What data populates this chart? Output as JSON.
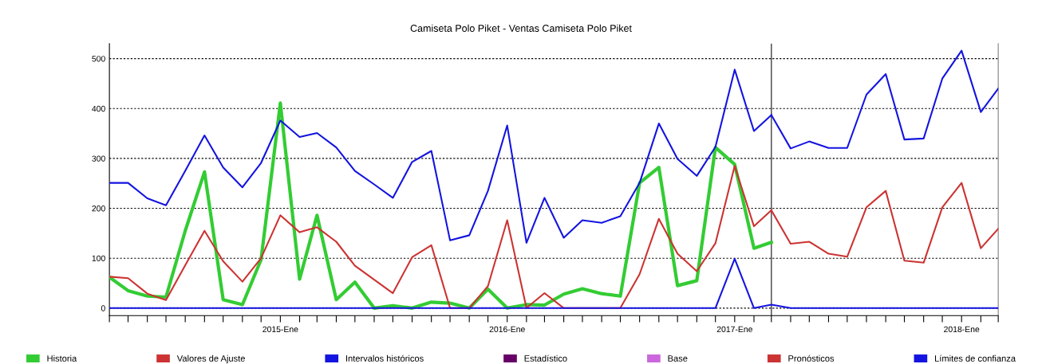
{
  "chart_data": {
    "type": "line",
    "title": "Camiseta Polo Piket - Ventas Camiseta Polo Piket",
    "xlim": [
      "2014-04",
      "2018-03"
    ],
    "xticks": [
      {
        "value": "2014-04",
        "label": null
      },
      {
        "value": "2014-05",
        "label": null
      },
      {
        "value": "2014-06",
        "label": null
      },
      {
        "value": "2014-07",
        "label": null
      },
      {
        "value": "2014-08",
        "label": null
      },
      {
        "value": "2014-09",
        "label": null
      },
      {
        "value": "2014-10",
        "label": null
      },
      {
        "value": "2014-11",
        "label": null
      },
      {
        "value": "2014-12",
        "label": null
      },
      {
        "value": "2015-01",
        "label": "2015-Ene"
      },
      {
        "value": "2015-02",
        "label": null
      },
      {
        "value": "2015-03",
        "label": null
      },
      {
        "value": "2015-04",
        "label": null
      },
      {
        "value": "2015-05",
        "label": null
      },
      {
        "value": "2015-06",
        "label": null
      },
      {
        "value": "2015-07",
        "label": null
      },
      {
        "value": "2015-08",
        "label": null
      },
      {
        "value": "2015-09",
        "label": null
      },
      {
        "value": "2015-10",
        "label": null
      },
      {
        "value": "2015-11",
        "label": null
      },
      {
        "value": "2015-12",
        "label": null
      },
      {
        "value": "2016-01",
        "label": "2016-Ene"
      },
      {
        "value": "2016-02",
        "label": null
      },
      {
        "value": "2016-03",
        "label": null
      },
      {
        "value": "2016-04",
        "label": null
      },
      {
        "value": "2016-05",
        "label": null
      },
      {
        "value": "2016-06",
        "label": null
      },
      {
        "value": "2016-07",
        "label": null
      },
      {
        "value": "2016-08",
        "label": null
      },
      {
        "value": "2016-09",
        "label": null
      },
      {
        "value": "2016-10",
        "label": null
      },
      {
        "value": "2016-11",
        "label": null
      },
      {
        "value": "2016-12",
        "label": null
      },
      {
        "value": "2017-01",
        "label": "2017-Ene"
      },
      {
        "value": "2017-02",
        "label": null
      },
      {
        "value": "2017-03",
        "label": null
      },
      {
        "value": "2017-04",
        "label": null
      },
      {
        "value": "2017-05",
        "label": null
      },
      {
        "value": "2017-06",
        "label": null
      },
      {
        "value": "2017-07",
        "label": null
      },
      {
        "value": "2017-08",
        "label": null
      },
      {
        "value": "2017-09",
        "label": null
      },
      {
        "value": "2017-10",
        "label": null
      },
      {
        "value": "2017-11",
        "label": null
      },
      {
        "value": "2017-12",
        "label": null
      },
      {
        "value": "2018-01",
        "label": "2018-Ene"
      },
      {
        "value": "2018-02",
        "label": null
      },
      {
        "value": "2018-03",
        "label": null
      }
    ],
    "ylim": [
      -15,
      530
    ],
    "yticks": [
      0,
      100,
      200,
      300,
      400,
      500
    ],
    "grid": "y",
    "legend": "bottom",
    "ref_lines": [
      {
        "axis": "x",
        "value": "2017-03",
        "color": "#404040"
      }
    ],
    "series": [
      {
        "name": "Historia",
        "color": "#33cc33",
        "x": [
          "2014-04",
          "2014-05",
          "2014-06",
          "2014-07",
          "2014-08",
          "2014-09",
          "2014-10",
          "2014-11",
          "2014-12",
          "2015-01",
          "2015-02",
          "2015-03",
          "2015-04",
          "2015-05",
          "2015-06",
          "2015-07",
          "2015-08",
          "2015-09",
          "2015-10",
          "2015-11",
          "2015-12",
          "2016-01",
          "2016-02",
          "2016-03",
          "2016-04",
          "2016-05",
          "2016-06",
          "2016-07",
          "2016-08",
          "2016-09",
          "2016-10",
          "2016-11",
          "2016-12",
          "2017-01",
          "2017-02",
          "2017-03"
        ],
        "values": [
          62,
          35,
          24,
          22,
          155,
          273,
          17,
          7,
          97,
          411,
          58,
          186,
          17,
          52,
          0,
          5,
          0,
          12,
          10,
          0,
          38,
          0,
          7,
          6,
          28,
          39,
          29,
          24,
          251,
          282,
          45,
          55,
          322,
          288,
          120,
          132
        ]
      },
      {
        "name": "Valores de Ajuste",
        "color": "#cc3333",
        "x": [
          "2014-04",
          "2014-05",
          "2014-06",
          "2014-07",
          "2014-08",
          "2014-09",
          "2014-10",
          "2014-11",
          "2014-12",
          "2015-01",
          "2015-02",
          "2015-03",
          "2015-04",
          "2015-05",
          "2015-06",
          "2015-07",
          "2015-08",
          "2015-09",
          "2015-10",
          "2015-11",
          "2015-12",
          "2016-01",
          "2016-02",
          "2016-03",
          "2016-04",
          "2016-05",
          "2016-06",
          "2016-07",
          "2016-08",
          "2016-09",
          "2016-10",
          "2016-11",
          "2016-12",
          "2017-01",
          "2017-02",
          "2017-03"
        ],
        "values": [
          63,
          60,
          29,
          16,
          86,
          155,
          94,
          53,
          100,
          186,
          152,
          162,
          133,
          85,
          57,
          30,
          102,
          126,
          0,
          0,
          44,
          176,
          0,
          30,
          0,
          0,
          0,
          0,
          68,
          179,
          109,
          74,
          130,
          285,
          164,
          196
        ]
      },
      {
        "name": "Intervalos históricos",
        "color": "#1414e0",
        "x": [
          "2014-04",
          "2014-05",
          "2014-06",
          "2014-07",
          "2014-08",
          "2014-09",
          "2014-10",
          "2014-11",
          "2014-12",
          "2015-01",
          "2015-02",
          "2015-03",
          "2015-04",
          "2015-05",
          "2015-06",
          "2015-07",
          "2015-08",
          "2015-09",
          "2015-10",
          "2015-11",
          "2015-12",
          "2016-01",
          "2016-02",
          "2016-03",
          "2016-04",
          "2016-05",
          "2016-06",
          "2016-07",
          "2016-08",
          "2016-09",
          "2016-10",
          "2016-11",
          "2016-12",
          "2017-01",
          "2017-02",
          "2017-03"
        ],
        "values": [
          251,
          251,
          220,
          206,
          275,
          346,
          282,
          242,
          291,
          376,
          343,
          351,
          322,
          275,
          248,
          221,
          293,
          315,
          136,
          146,
          235,
          366,
          131,
          221,
          141,
          176,
          171,
          184,
          251,
          370,
          299,
          265,
          323,
          478,
          355,
          387
        ]
      },
      {
        "color": "#1414e0",
        "x": [
          "2014-04",
          "2014-05",
          "2014-06",
          "2014-07",
          "2014-08",
          "2014-09",
          "2014-10",
          "2014-11",
          "2014-12",
          "2015-01",
          "2015-02",
          "2015-03",
          "2015-04",
          "2015-05",
          "2015-06",
          "2015-07",
          "2015-08",
          "2015-09",
          "2015-10",
          "2015-11",
          "2015-12",
          "2016-01",
          "2016-02",
          "2016-03",
          "2016-04",
          "2016-05",
          "2016-06",
          "2016-07",
          "2016-08",
          "2016-09",
          "2016-10",
          "2016-11",
          "2016-12",
          "2017-01",
          "2017-02",
          "2017-03",
          "2017-04",
          "2017-05",
          "2017-06",
          "2017-07",
          "2017-08",
          "2017-09",
          "2017-10",
          "2017-11",
          "2017-12",
          "2018-01",
          "2018-02",
          "2018-03"
        ],
        "values": [
          0,
          0,
          0,
          0,
          0,
          0,
          0,
          0,
          0,
          0,
          0,
          0,
          0,
          0,
          0,
          0,
          0,
          0,
          0,
          0,
          0,
          0,
          0,
          0,
          0,
          0,
          0,
          0,
          0,
          0,
          0,
          0,
          0,
          99,
          0,
          7,
          0,
          0,
          0,
          0,
          0,
          0,
          0,
          0,
          0,
          0,
          0,
          0
        ]
      },
      {
        "name": "Estadístico",
        "color": "#660066"
      },
      {
        "name": "Base",
        "color": "#cc66dd"
      },
      {
        "name": "Pronósticos",
        "color": "#cc3333",
        "x": [
          "2017-03",
          "2017-04",
          "2017-05",
          "2017-06",
          "2017-07",
          "2017-08",
          "2017-09",
          "2017-10",
          "2017-11",
          "2017-12",
          "2018-01",
          "2018-02",
          "2018-03"
        ],
        "values": [
          196,
          129,
          133,
          109,
          103,
          202,
          235,
          95,
          91,
          202,
          251,
          120,
          159
        ]
      },
      {
        "name": "Límites de confianza",
        "color": "#1414e0",
        "x": [
          "2017-03",
          "2017-04",
          "2017-05",
          "2017-06",
          "2017-07",
          "2017-08",
          "2017-09",
          "2017-10",
          "2017-11",
          "2017-12",
          "2018-01",
          "2018-02",
          "2018-03"
        ],
        "values": [
          387,
          320,
          334,
          321,
          321,
          428,
          469,
          338,
          340,
          460,
          516,
          393,
          440
        ]
      }
    ]
  }
}
